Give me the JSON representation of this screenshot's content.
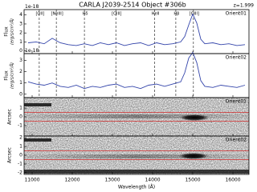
{
  "chart_data": [
    {
      "type": "line",
      "title": "CARLA J2039-2514 Object #306b",
      "subtitle": "z=1.999",
      "ylabel": "Flux",
      "yunit": "(erg/s/cm²/Å)",
      "yscale_label": "1e-18",
      "x": [
        10900,
        11100,
        11300,
        11500,
        11700,
        11900,
        12100,
        12300,
        12500,
        12700,
        12900,
        13100,
        13300,
        13500,
        13700,
        13900,
        14100,
        14300,
        14500,
        14700,
        14800,
        14900,
        15000,
        15100,
        15200,
        15300,
        15500,
        15700,
        15900,
        16100,
        16300
      ],
      "series": [
        {
          "name": "Orient01",
          "color": "#3344aa",
          "values": [
            0.9,
            1.0,
            0.8,
            1.4,
            0.9,
            0.7,
            0.6,
            0.8,
            0.6,
            0.9,
            0.7,
            0.9,
            0.6,
            0.8,
            0.9,
            0.6,
            0.9,
            0.7,
            0.8,
            1.0,
            1.6,
            2.9,
            4.1,
            3.1,
            1.3,
            0.8,
            0.9,
            0.7,
            0.8,
            0.6,
            0.7
          ]
        }
      ],
      "lines": [
        {
          "x": 11177,
          "label": "[OII]"
        },
        {
          "x": 11603,
          "label": "[NeIII]"
        },
        {
          "x": 12302,
          "label": "Hδ"
        },
        {
          "x": 13085,
          "label": "[OIII]"
        },
        {
          "x": 14053,
          "label": "HeII"
        },
        {
          "x": 14578,
          "label": "Hβ"
        },
        {
          "x": 15016,
          "label": "[OIII]"
        }
      ],
      "xlim": [
        10800,
        16400
      ],
      "xticks": [
        11000,
        12000,
        13000,
        14000,
        15000,
        16000
      ],
      "ylim": [
        -0.3,
        4.6
      ],
      "yticks": [
        0,
        1,
        2,
        3,
        4
      ]
    },
    {
      "type": "line",
      "ylabel": "Flux",
      "yunit": "(erg/s/cm²/Å)",
      "yscale_label": "1e-18",
      "x": [
        10900,
        11100,
        11300,
        11500,
        11700,
        11900,
        12100,
        12300,
        12500,
        12700,
        12900,
        13100,
        13300,
        13500,
        13700,
        13900,
        14100,
        14300,
        14500,
        14700,
        14800,
        14900,
        15000,
        15100,
        15200,
        15300,
        15500,
        15700,
        15900,
        16100,
        16300
      ],
      "series": [
        {
          "name": "Orient02",
          "color": "#3344aa",
          "values": [
            1.1,
            0.9,
            0.8,
            1.0,
            0.7,
            0.6,
            0.8,
            0.5,
            0.7,
            0.6,
            0.8,
            0.9,
            0.6,
            0.7,
            0.5,
            0.8,
            0.9,
            0.7,
            0.9,
            1.1,
            1.9,
            3.2,
            3.7,
            2.8,
            1.2,
            0.7,
            0.6,
            0.8,
            0.7,
            0.6,
            0.8
          ]
        }
      ],
      "xlim": [
        10800,
        16400
      ],
      "xticks": [
        11000,
        12000,
        13000,
        14000,
        15000,
        16000
      ],
      "ylim": [
        -0.3,
        3.6
      ],
      "yticks": [
        0,
        1,
        2,
        3
      ]
    },
    {
      "type": "image",
      "label": "Orient01",
      "ylabel": "Arcsec",
      "xlim": [
        10800,
        16400
      ],
      "xticks": [
        11000,
        12000,
        13000,
        14000,
        15000,
        16000
      ],
      "ylim": [
        -2.2,
        2.2
      ],
      "yticks": [
        1,
        0,
        -1
      ],
      "aperture": [
        -0.5,
        0.5
      ],
      "aperture_color": "#d04040"
    },
    {
      "type": "image",
      "label": "Orient02",
      "ylabel": "Arcsec",
      "xlabel": "Wavelength (Å)",
      "xlim": [
        10800,
        16400
      ],
      "xticks": [
        11000,
        12000,
        13000,
        14000,
        15000,
        16000
      ],
      "ylim": [
        -2.2,
        2.2
      ],
      "yticks": [
        2,
        1,
        0,
        -1,
        -2
      ],
      "aperture": [
        -0.5,
        0.5
      ],
      "aperture_color": "#d04040"
    }
  ]
}
